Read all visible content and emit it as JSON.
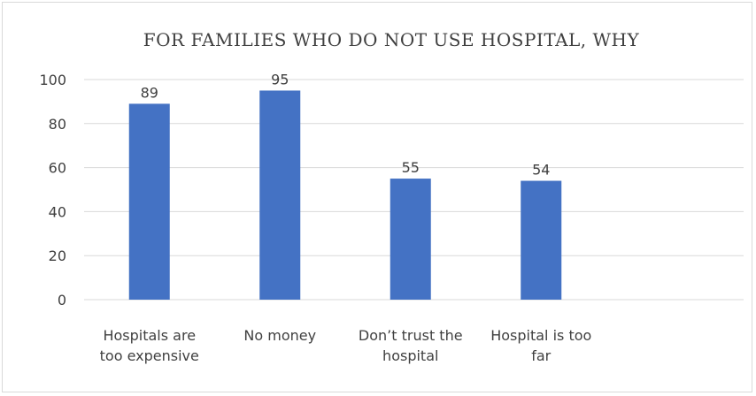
{
  "chart_data": {
    "type": "bar",
    "title": "FOR FAMILIES WHO DO NOT USE HOSPITAL, WHY",
    "categories": [
      [
        "Hospitals are",
        "too expensive"
      ],
      [
        "No money"
      ],
      [
        "Don’t trust the",
        "hospital"
      ],
      [
        "Hospital is too",
        "far"
      ]
    ],
    "series": [
      {
        "values": [
          89,
          95,
          55,
          54
        ]
      }
    ],
    "ylim": [
      0,
      100
    ],
    "yticks": [
      0,
      20,
      40,
      60,
      80,
      100
    ],
    "xlabel": "",
    "ylabel": "",
    "grid": true,
    "legend": "none",
    "colors": {
      "bar": "#4472c4",
      "grid": "#d9d9d9",
      "text": "#404040"
    }
  }
}
